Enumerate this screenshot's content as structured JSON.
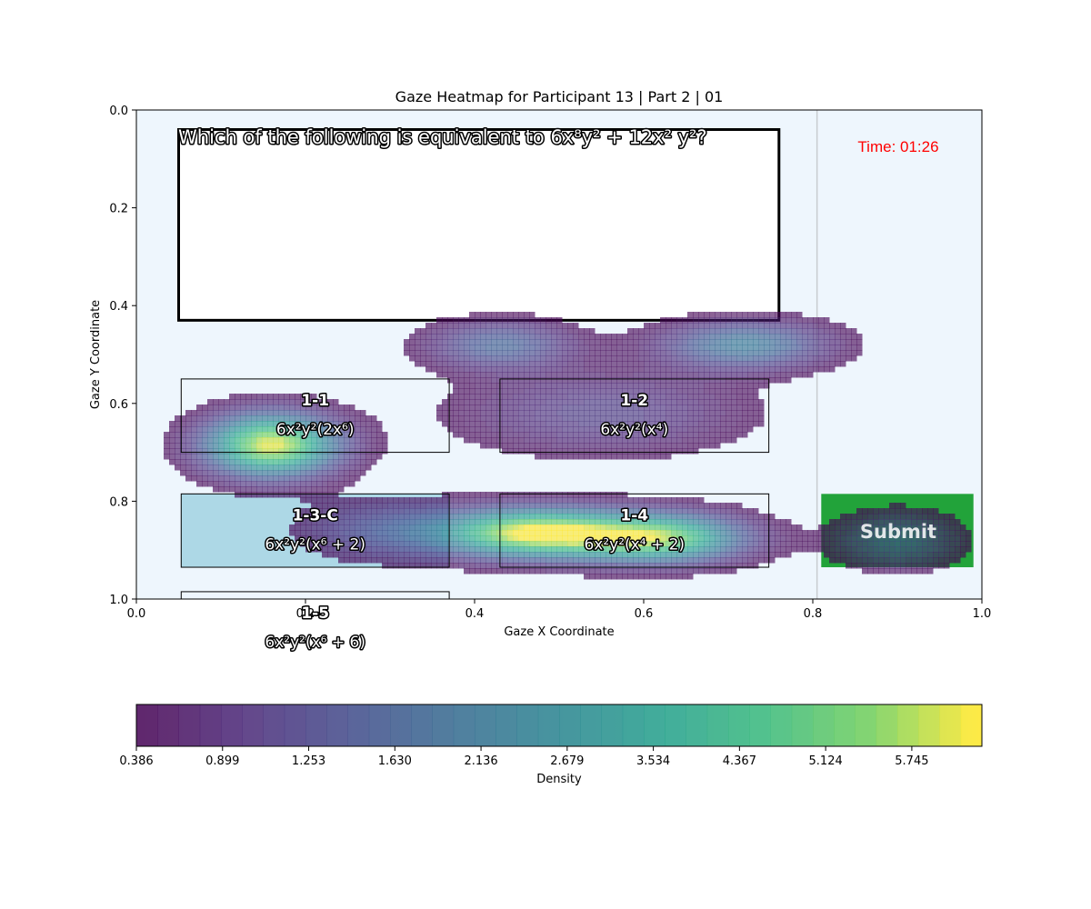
{
  "chart_data": {
    "type": "heatmap",
    "title": "Gaze Heatmap for Participant 13 | Part 2 | 01",
    "xlabel": "Gaze X Coordinate",
    "ylabel": "Gaze Y Coordinate",
    "xlim": [
      0.0,
      1.0
    ],
    "ylim": [
      1.0,
      0.0
    ],
    "y_inverted": true,
    "x_ticks": [
      "0.0",
      "0.2",
      "0.4",
      "0.6",
      "0.8",
      "1.0"
    ],
    "y_ticks": [
      "0.0",
      "0.2",
      "0.4",
      "0.6",
      "0.8",
      "1.0"
    ],
    "grid": false,
    "colormap": "viridis",
    "colorbar": {
      "label": "Density",
      "orientation": "horizontal",
      "tick_labels": [
        "0.386",
        "0.899",
        "1.253",
        "1.630",
        "2.136",
        "2.679",
        "3.534",
        "4.367",
        "5.124",
        "5.745"
      ],
      "min": 0.386,
      "max": 6.2,
      "levels": 40
    },
    "question": "Which of the following is equivalent to 6x⁸y² + 12x² y²?",
    "timer": "Time: 01:26",
    "submit_label": "Submit",
    "vertical_line_x": 0.805,
    "question_box": {
      "x0": 0.05,
      "y0": 0.04,
      "x1": 0.76,
      "y1": 0.43
    },
    "options": [
      {
        "id": "1-1",
        "text": "6x²y²(2x⁶)",
        "x0": 0.053,
        "y0": 0.55,
        "x1": 0.37,
        "y1": 0.7,
        "fill": "none"
      },
      {
        "id": "1-2",
        "text": "6x²y²(x⁴)",
        "x0": 0.43,
        "y0": 0.55,
        "x1": 0.748,
        "y1": 0.7,
        "fill": "none"
      },
      {
        "id": "1-3-C",
        "text": "6x²y²(x⁶ + 2)",
        "x0": 0.053,
        "y0": 0.785,
        "x1": 0.37,
        "y1": 0.935,
        "fill": "#add8e6"
      },
      {
        "id": "1-4",
        "text": "6x²y²(x⁴ + 2)",
        "x0": 0.43,
        "y0": 0.785,
        "x1": 0.748,
        "y1": 0.935,
        "fill": "none"
      },
      {
        "id": "1-5",
        "text": "6x²y²(x⁶ + 6)",
        "x0": 0.053,
        "y0": 0.985,
        "x1": 0.37,
        "y1": 1.135,
        "fill": "none"
      }
    ],
    "submit_box": {
      "x0": 0.81,
      "y0": 0.785,
      "x1": 0.99,
      "y1": 0.935,
      "color": "#22a33a"
    },
    "density_hotspots": [
      {
        "x": 0.16,
        "y": 0.685,
        "weight": 1.0,
        "sx": 0.055,
        "sy": 0.045
      },
      {
        "x": 0.47,
        "y": 0.865,
        "weight": 1.0,
        "sx": 0.075,
        "sy": 0.035
      },
      {
        "x": 0.62,
        "y": 0.875,
        "weight": 0.85,
        "sx": 0.07,
        "sy": 0.035
      },
      {
        "x": 0.72,
        "y": 0.48,
        "weight": 0.45,
        "sx": 0.07,
        "sy": 0.035
      },
      {
        "x": 0.43,
        "y": 0.48,
        "weight": 0.35,
        "sx": 0.06,
        "sy": 0.035
      },
      {
        "x": 0.9,
        "y": 0.88,
        "weight": 0.3,
        "sx": 0.05,
        "sy": 0.04
      },
      {
        "x": 0.55,
        "y": 0.62,
        "weight": 0.22,
        "sx": 0.12,
        "sy": 0.06
      },
      {
        "x": 0.3,
        "y": 0.86,
        "weight": 0.25,
        "sx": 0.07,
        "sy": 0.04
      }
    ]
  }
}
